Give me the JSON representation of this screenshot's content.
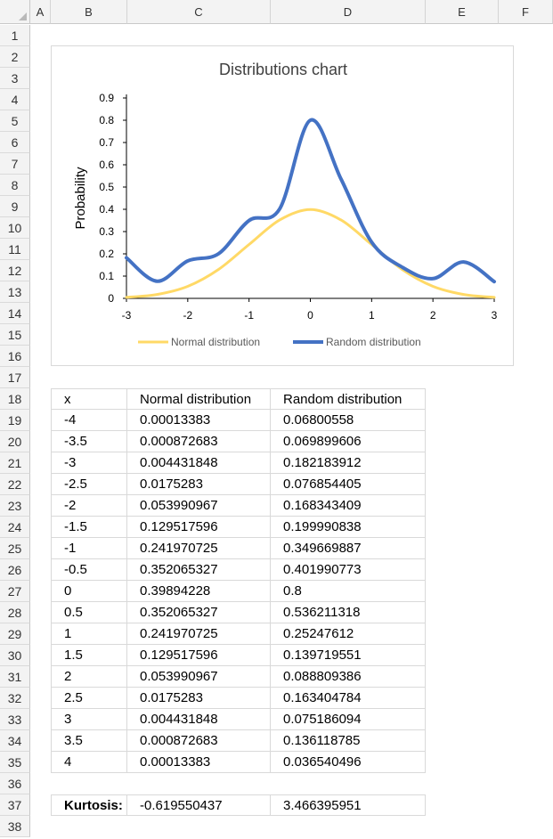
{
  "sheet": {
    "columns": [
      "A",
      "B",
      "C",
      "D",
      "E",
      "F"
    ],
    "rows": [
      "1",
      "2",
      "3",
      "4",
      "5",
      "6",
      "7",
      "8",
      "9",
      "10",
      "11",
      "12",
      "13",
      "14",
      "15",
      "16",
      "17",
      "18",
      "19",
      "20",
      "21",
      "22",
      "23",
      "24",
      "25",
      "26",
      "27",
      "28",
      "29",
      "30",
      "31",
      "32",
      "33",
      "34",
      "35",
      "36",
      "37",
      "38"
    ]
  },
  "table": {
    "headers": [
      "x",
      "Normal distribution",
      "Random distribution"
    ],
    "rows": [
      [
        "-4",
        "0.00013383",
        "0.06800558"
      ],
      [
        "-3.5",
        "0.000872683",
        "0.069899606"
      ],
      [
        "-3",
        "0.004431848",
        "0.182183912"
      ],
      [
        "-2.5",
        "0.0175283",
        "0.076854405"
      ],
      [
        "-2",
        "0.053990967",
        "0.168343409"
      ],
      [
        "-1.5",
        "0.129517596",
        "0.199990838"
      ],
      [
        "-1",
        "0.241970725",
        "0.349669887"
      ],
      [
        "-0.5",
        "0.352065327",
        "0.401990773"
      ],
      [
        "0",
        "0.39894228",
        "0.8"
      ],
      [
        "0.5",
        "0.352065327",
        "0.536211318"
      ],
      [
        "1",
        "0.241970725",
        "0.25247612"
      ],
      [
        "1.5",
        "0.129517596",
        "0.139719551"
      ],
      [
        "2",
        "0.053990967",
        "0.088809386"
      ],
      [
        "2.5",
        "0.0175283",
        "0.163404784"
      ],
      [
        "3",
        "0.004431848",
        "0.075186094"
      ],
      [
        "3.5",
        "0.000872683",
        "0.136118785"
      ],
      [
        "4",
        "0.00013383",
        "0.036540496"
      ]
    ]
  },
  "kurtosis": {
    "label": "Kurtosis:",
    "normal": "-0.619550437",
    "random": "3.466395951"
  },
  "chart_data": {
    "type": "line",
    "title": "Distributions chart",
    "xlabel": "",
    "ylabel": "Probability",
    "xlim": [
      -3,
      3
    ],
    "ylim": [
      0,
      0.9
    ],
    "x_ticks": [
      "-3",
      "-2",
      "-1",
      "0",
      "1",
      "2",
      "3"
    ],
    "y_ticks": [
      "0",
      "0.1",
      "0.2",
      "0.3",
      "0.4",
      "0.5",
      "0.6",
      "0.7",
      "0.8",
      "0.9"
    ],
    "smooth": true,
    "legend_position": "bottom",
    "series": [
      {
        "name": "Normal distribution",
        "color": "#FFD966",
        "x": [
          -3,
          -2.5,
          -2,
          -1.5,
          -1,
          -0.5,
          0,
          0.5,
          1,
          1.5,
          2,
          2.5,
          3
        ],
        "y": [
          0.004431848,
          0.0175283,
          0.053990967,
          0.129517596,
          0.241970725,
          0.352065327,
          0.39894228,
          0.352065327,
          0.241970725,
          0.129517596,
          0.053990967,
          0.0175283,
          0.004431848
        ]
      },
      {
        "name": "Random distribution",
        "color": "#4472C4",
        "x": [
          -3,
          -2.5,
          -2,
          -1.5,
          -1,
          -0.5,
          0,
          0.5,
          1,
          1.5,
          2,
          2.5,
          3
        ],
        "y": [
          0.182183912,
          0.076854405,
          0.168343409,
          0.199990838,
          0.349669887,
          0.401990773,
          0.8,
          0.536211318,
          0.25247612,
          0.139719551,
          0.088809386,
          0.163404784,
          0.075186094
        ]
      }
    ]
  }
}
